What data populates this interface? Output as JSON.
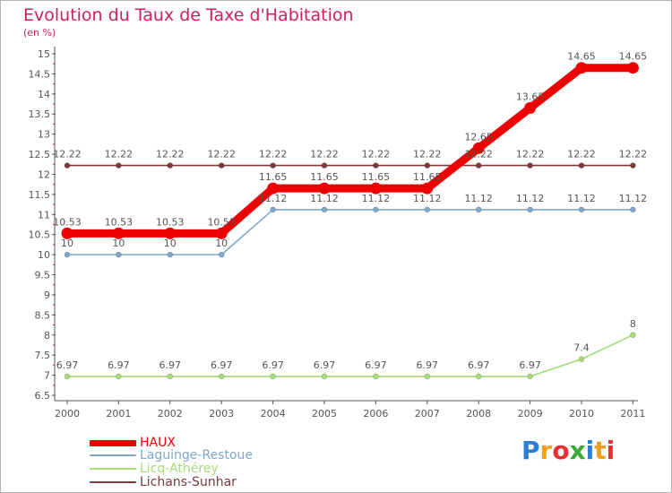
{
  "chart_data": {
    "type": "line",
    "title": "Evolution du Taux de Taxe d'Habitation",
    "unit_label": "(en %)",
    "x": [
      "2000",
      "2001",
      "2002",
      "2003",
      "2004",
      "2005",
      "2006",
      "2007",
      "2008",
      "2009",
      "2010",
      "2011"
    ],
    "ylim": [
      6.5,
      15
    ],
    "yticks": [
      "6.5",
      "7",
      "7.5",
      "8",
      "8.5",
      "9",
      "9.5",
      "10",
      "10.5",
      "11",
      "11.5",
      "12",
      "12.5",
      "13",
      "13.5",
      "14",
      "14.5",
      "15"
    ],
    "grid": false,
    "legend_position": "bottom-left",
    "series": [
      {
        "name": "HAUX",
        "color": "#ee0000",
        "values": [
          10.53,
          10.53,
          10.53,
          10.53,
          11.65,
          11.65,
          11.65,
          11.65,
          12.65,
          13.65,
          14.65,
          14.65
        ],
        "labels": [
          "10.53",
          "10.53",
          "10.53",
          "10.53",
          "11.65",
          "11.65",
          "11.65",
          "11.65",
          "12.65",
          "13.65",
          "14.65",
          "14.65"
        ]
      },
      {
        "name": "Laguinge-Restoue",
        "color": "#7fa8cc",
        "values": [
          10,
          10,
          10,
          10,
          11.12,
          11.12,
          11.12,
          11.12,
          11.12,
          11.12,
          11.12,
          11.12
        ],
        "labels": [
          "10",
          "10",
          "10",
          "10",
          "11.12",
          "11.12",
          "11.12",
          "11.12",
          "11.12",
          "11.12",
          "11.12",
          "11.12"
        ]
      },
      {
        "name": "Licq-Athérey",
        "color": "#a8dc78",
        "values": [
          6.97,
          6.97,
          6.97,
          6.97,
          6.97,
          6.97,
          6.97,
          6.97,
          6.97,
          6.97,
          7.4,
          8
        ],
        "labels": [
          "6.97",
          "6.97",
          "6.97",
          "6.97",
          "6.97",
          "6.97",
          "6.97",
          "6.97",
          "6.97",
          "6.97",
          "7.4",
          "8"
        ]
      },
      {
        "name": "Lichans-Sunhar",
        "color": "#7a3a3a",
        "values": [
          12.22,
          12.22,
          12.22,
          12.22,
          12.22,
          12.22,
          12.22,
          12.22,
          12.22,
          12.22,
          12.22,
          12.22
        ],
        "labels": [
          "12.22",
          "12.22",
          "12.22",
          "12.22",
          "12.22",
          "12.22",
          "12.22",
          "12.22",
          "12.22",
          "12.22",
          "12.22",
          "12.22"
        ]
      }
    ]
  },
  "legend": [
    {
      "label": "HAUX",
      "color": "#ee0000"
    },
    {
      "label": "Laguinge-Restoue",
      "color": "#7fa8cc"
    },
    {
      "label": "Licq-Athérey",
      "color": "#a8dc78"
    },
    {
      "label": "Lichans-Sunhar",
      "color": "#7a3a3a"
    }
  ],
  "logo": {
    "text": "Proxiti",
    "colors": [
      "#2a7fd4",
      "#f0a020",
      "#e83030",
      "#3aaa3a",
      "#2a7fd4",
      "#f0a020",
      "#e83030"
    ]
  },
  "colors": {
    "title": "#d21e5a",
    "axis": "#555555",
    "label": "#555555",
    "accent_tick": "#d21e5a"
  }
}
